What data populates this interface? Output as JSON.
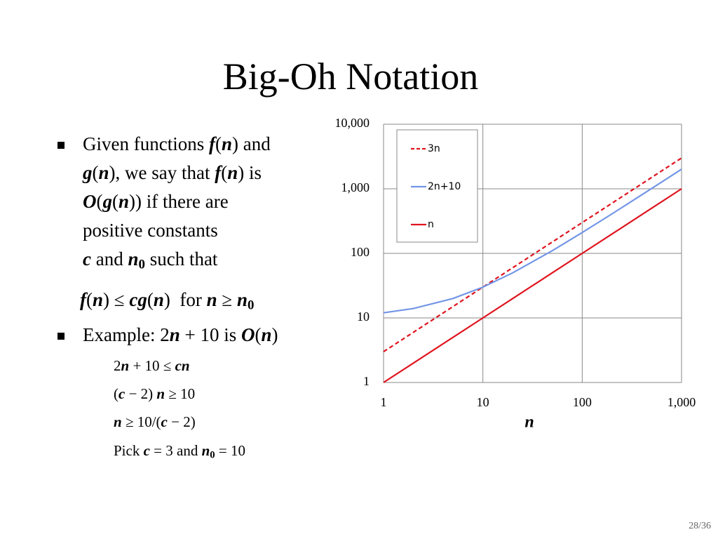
{
  "title": "Big-Oh Notation",
  "body": [
    [
      "Given functions ",
      "f",
      "(",
      "n",
      ") and"
    ],
    [
      "g",
      "(",
      "n",
      "), we say that ",
      "f",
      "(",
      "n",
      ") is"
    ],
    [
      "O",
      "(",
      "g",
      "(",
      "n",
      ")) if there are"
    ],
    [
      "positive constants"
    ],
    [
      "c",
      " and ",
      "n",
      "0",
      " such that"
    ],
    [
      "f",
      "(",
      "n",
      ") ≤ ",
      "cg",
      "(",
      "n",
      ")  for ",
      "n",
      " ≥ ",
      "n",
      "0"
    ],
    [
      "Example: 2",
      "n",
      " + 10 is ",
      "O",
      "(",
      "n",
      ")"
    ],
    [
      "2",
      "n",
      " + 10 ≤ ",
      "cn"
    ],
    [
      "(",
      "c",
      " − 2) ",
      "n",
      " ≥ 10"
    ],
    [
      "n",
      " ≥ 10/(",
      "c",
      " − 2)"
    ],
    [
      "Pick ",
      "c",
      " = 3 and ",
      "n",
      "0",
      " = 10"
    ]
  ],
  "page_number": "28/36",
  "chart_data": {
    "type": "line",
    "x_label": "n",
    "log_x": true,
    "log_y": true,
    "grid": true,
    "x": [
      1,
      2,
      5,
      10,
      20,
      50,
      100,
      200,
      500,
      1000
    ],
    "series": [
      {
        "name": "3n",
        "color": "#e0141e",
        "dashed": true,
        "values": [
          3,
          6,
          15,
          30,
          60,
          150,
          300,
          600,
          1500,
          3000
        ]
      },
      {
        "name": "2n+10",
        "color": "#7396e6",
        "dashed": false,
        "values": [
          12,
          14,
          20,
          30,
          50,
          110,
          210,
          410,
          1010,
          2010
        ]
      },
      {
        "name": "n",
        "color": "#e0141e",
        "dashed": false,
        "values": [
          1,
          2,
          5,
          10,
          20,
          50,
          100,
          200,
          500,
          1000
        ]
      }
    ],
    "xlim": [
      1,
      1000
    ],
    "ylim": [
      1,
      10000
    ],
    "xticks": [
      1,
      10,
      100,
      {
        "value": 1000,
        "label": "1,000"
      }
    ],
    "yticks": [
      1,
      10,
      100,
      {
        "value": 1000,
        "label": "1,000"
      },
      {
        "value": 10000,
        "label": "10,000"
      }
    ],
    "legend": "top-left"
  }
}
